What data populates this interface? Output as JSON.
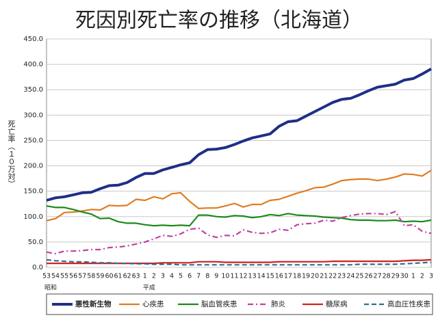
{
  "chart_data": {
    "type": "line",
    "title": "死因別死亡率の推移（北海道）",
    "y_label": "死亡率（１０万対）",
    "categories": [
      "53",
      "54",
      "55",
      "56",
      "57",
      "58",
      "59",
      "60",
      "61",
      "62",
      "63",
      "1",
      "2",
      "3",
      "4",
      "5",
      "6",
      "7",
      "8",
      "9",
      "10",
      "11",
      "12",
      "13",
      "14",
      "15",
      "16",
      "17",
      "18",
      "19",
      "20",
      "21",
      "22",
      "23",
      "24",
      "25",
      "26",
      "27",
      "28",
      "29",
      "30",
      "1",
      "2",
      "3"
    ],
    "era_labels": [
      {
        "label": "昭和",
        "index": 0
      },
      {
        "label": "平成",
        "index": 11
      }
    ],
    "ylim": [
      0,
      450
    ],
    "yticks": [
      {
        "value": 0,
        "label": "0.0"
      },
      {
        "value": 50,
        "label": "50.0"
      },
      {
        "value": 100,
        "label": "100.0"
      },
      {
        "value": 150,
        "label": "150.0"
      },
      {
        "value": 200,
        "label": "200.0"
      },
      {
        "value": 250,
        "label": "250.0"
      },
      {
        "value": 300,
        "label": "300.0"
      },
      {
        "value": 350,
        "label": "350.0"
      },
      {
        "value": 400,
        "label": "400.0"
      },
      {
        "value": 450,
        "label": "450.0"
      }
    ],
    "grid": true,
    "legend": "bottom",
    "series": [
      {
        "name": "悪性新生物",
        "color": "#1f2f86",
        "style": "solid",
        "width": 4,
        "values": [
          132,
          137,
          139,
          143,
          147,
          148,
          155,
          161,
          162,
          167,
          177,
          185,
          185,
          192,
          197,
          202,
          206,
          222,
          232,
          233,
          236,
          242,
          249,
          255,
          259,
          263,
          278,
          287,
          289,
          298,
          307,
          316,
          325,
          331,
          333,
          340,
          348,
          355,
          358,
          361,
          369,
          372,
          381,
          391
        ]
      },
      {
        "name": "心疾患",
        "color": "#e07b22",
        "style": "solid",
        "width": 2.2,
        "values": [
          92,
          96,
          108,
          109,
          111,
          114,
          113,
          122,
          121,
          122,
          134,
          132,
          139,
          135,
          145,
          147,
          130,
          116,
          117,
          117,
          121,
          126,
          119,
          124,
          124,
          132,
          134,
          140,
          146,
          151,
          157,
          158,
          164,
          171,
          173,
          174,
          174,
          171,
          174,
          178,
          184,
          183,
          180,
          191
        ]
      },
      {
        "name": "脳血管疾患",
        "color": "#1a8a1a",
        "style": "solid",
        "width": 2.2,
        "values": [
          121,
          118,
          118,
          114,
          109,
          105,
          96,
          97,
          90,
          87,
          87,
          84,
          82,
          83,
          82,
          83,
          82,
          103,
          103,
          100,
          99,
          102,
          101,
          98,
          100,
          104,
          102,
          106,
          103,
          102,
          101,
          99,
          98,
          97,
          94,
          93,
          93,
          92,
          92,
          93,
          90,
          91,
          90,
          93
        ]
      },
      {
        "name": "肺炎",
        "color": "#c040a0",
        "style": "dashdot",
        "width": 2.2,
        "values": [
          30,
          27,
          32,
          32,
          33,
          35,
          35,
          39,
          40,
          42,
          46,
          50,
          56,
          63,
          61,
          66,
          75,
          77,
          64,
          59,
          63,
          62,
          74,
          69,
          67,
          68,
          75,
          73,
          84,
          86,
          87,
          93,
          91,
          98,
          102,
          105,
          106,
          106,
          104,
          110,
          82,
          84,
          71,
          67
        ]
      },
      {
        "name": "糖尿病",
        "color": "#d02020",
        "style": "solid",
        "width": 2.2,
        "values": [
          8,
          8,
          8,
          8,
          8,
          8,
          8,
          8,
          8,
          8,
          8,
          8,
          8,
          9,
          9,
          9,
          9,
          11,
          11,
          11,
          10,
          10,
          10,
          10,
          10,
          10,
          11,
          11,
          11,
          11,
          11,
          11,
          12,
          12,
          12,
          12,
          12,
          12,
          12,
          12,
          13,
          14,
          14,
          15
        ]
      },
      {
        "name": "高血圧性疾患",
        "color": "#2e6e8e",
        "style": "dash",
        "width": 2.2,
        "values": [
          15,
          13,
          12,
          11,
          11,
          10,
          9,
          9,
          8,
          8,
          7,
          7,
          6,
          6,
          6,
          5,
          5,
          5,
          5,
          5,
          5,
          5,
          5,
          5,
          5,
          5,
          5,
          5,
          5,
          5,
          5,
          5,
          5,
          5,
          5,
          6,
          6,
          6,
          6,
          6,
          7,
          8,
          9,
          10
        ]
      }
    ]
  }
}
